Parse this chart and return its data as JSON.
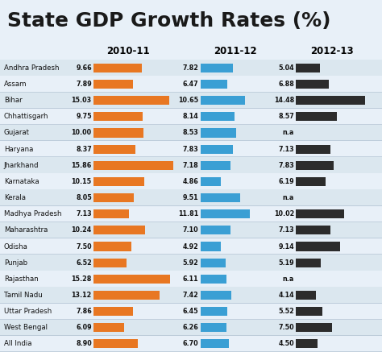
{
  "title": "State GDP Growth Rates (%)",
  "title_fontsize": 18,
  "title_color": "#1a1a1a",
  "background_color": "#e8f0f8",
  "header_bg": "#c5d8e8",
  "years": [
    "2010-11",
    "2011-12",
    "2012-13"
  ],
  "states": [
    "Andhra Pradesh",
    "Assam",
    "Bihar",
    "Chhattisgarh",
    "Gujarat",
    "Haryana",
    "Jharkhand",
    "Karnataka",
    "Kerala",
    "Madhya Pradesh",
    "Maharashtra",
    "Odisha",
    "Punjab",
    "Rajasthan",
    "Tamil Nadu",
    "Uttar Pradesh",
    "West Bengal",
    "All India"
  ],
  "values_2010": [
    9.66,
    7.89,
    15.03,
    9.75,
    10.0,
    8.37,
    15.86,
    10.15,
    8.05,
    7.13,
    10.24,
    7.5,
    6.52,
    15.28,
    13.12,
    7.86,
    6.09,
    8.9
  ],
  "values_2011": [
    7.82,
    6.47,
    10.65,
    8.14,
    8.53,
    7.83,
    7.18,
    4.86,
    9.51,
    11.81,
    7.1,
    4.92,
    5.92,
    6.11,
    7.42,
    6.45,
    6.26,
    6.7
  ],
  "values_2012": [
    5.04,
    6.88,
    14.48,
    8.57,
    null,
    7.13,
    7.83,
    6.19,
    null,
    10.02,
    7.13,
    9.14,
    5.19,
    null,
    4.14,
    5.52,
    7.5,
    4.5
  ],
  "labels_2010": [
    "9.66",
    "7.89",
    "15.03",
    "9.75",
    "10.00",
    "8.37",
    "15.86",
    "10.15",
    "8.05",
    "7.13",
    "10.24",
    "7.50",
    "6.52",
    "15.28",
    "13.12",
    "7.86",
    "6.09",
    "8.90"
  ],
  "labels_2011": [
    "7.82",
    "6.47",
    "10.65",
    "8.14",
    "8.53",
    "7.83",
    "7.18",
    "4.86",
    "9.51",
    "11.81",
    "7.10",
    "4.92",
    "5.92",
    "6.11",
    "7.42",
    "6.45",
    "6.26",
    "6.70"
  ],
  "labels_2012": [
    "5.04",
    "6.88",
    "14.48",
    "8.57",
    "n.a",
    "7.13",
    "7.83",
    "6.19",
    "n.a",
    "10.02",
    "7.13",
    "9.14",
    "5.19",
    "n.a",
    "4.14",
    "5.52",
    "7.50",
    "4.50"
  ],
  "color_2010": "#e87722",
  "color_2011": "#3a9fd4",
  "color_2012": "#2c2c2c",
  "bar_height": 0.55,
  "max_bar_width": 16.0
}
